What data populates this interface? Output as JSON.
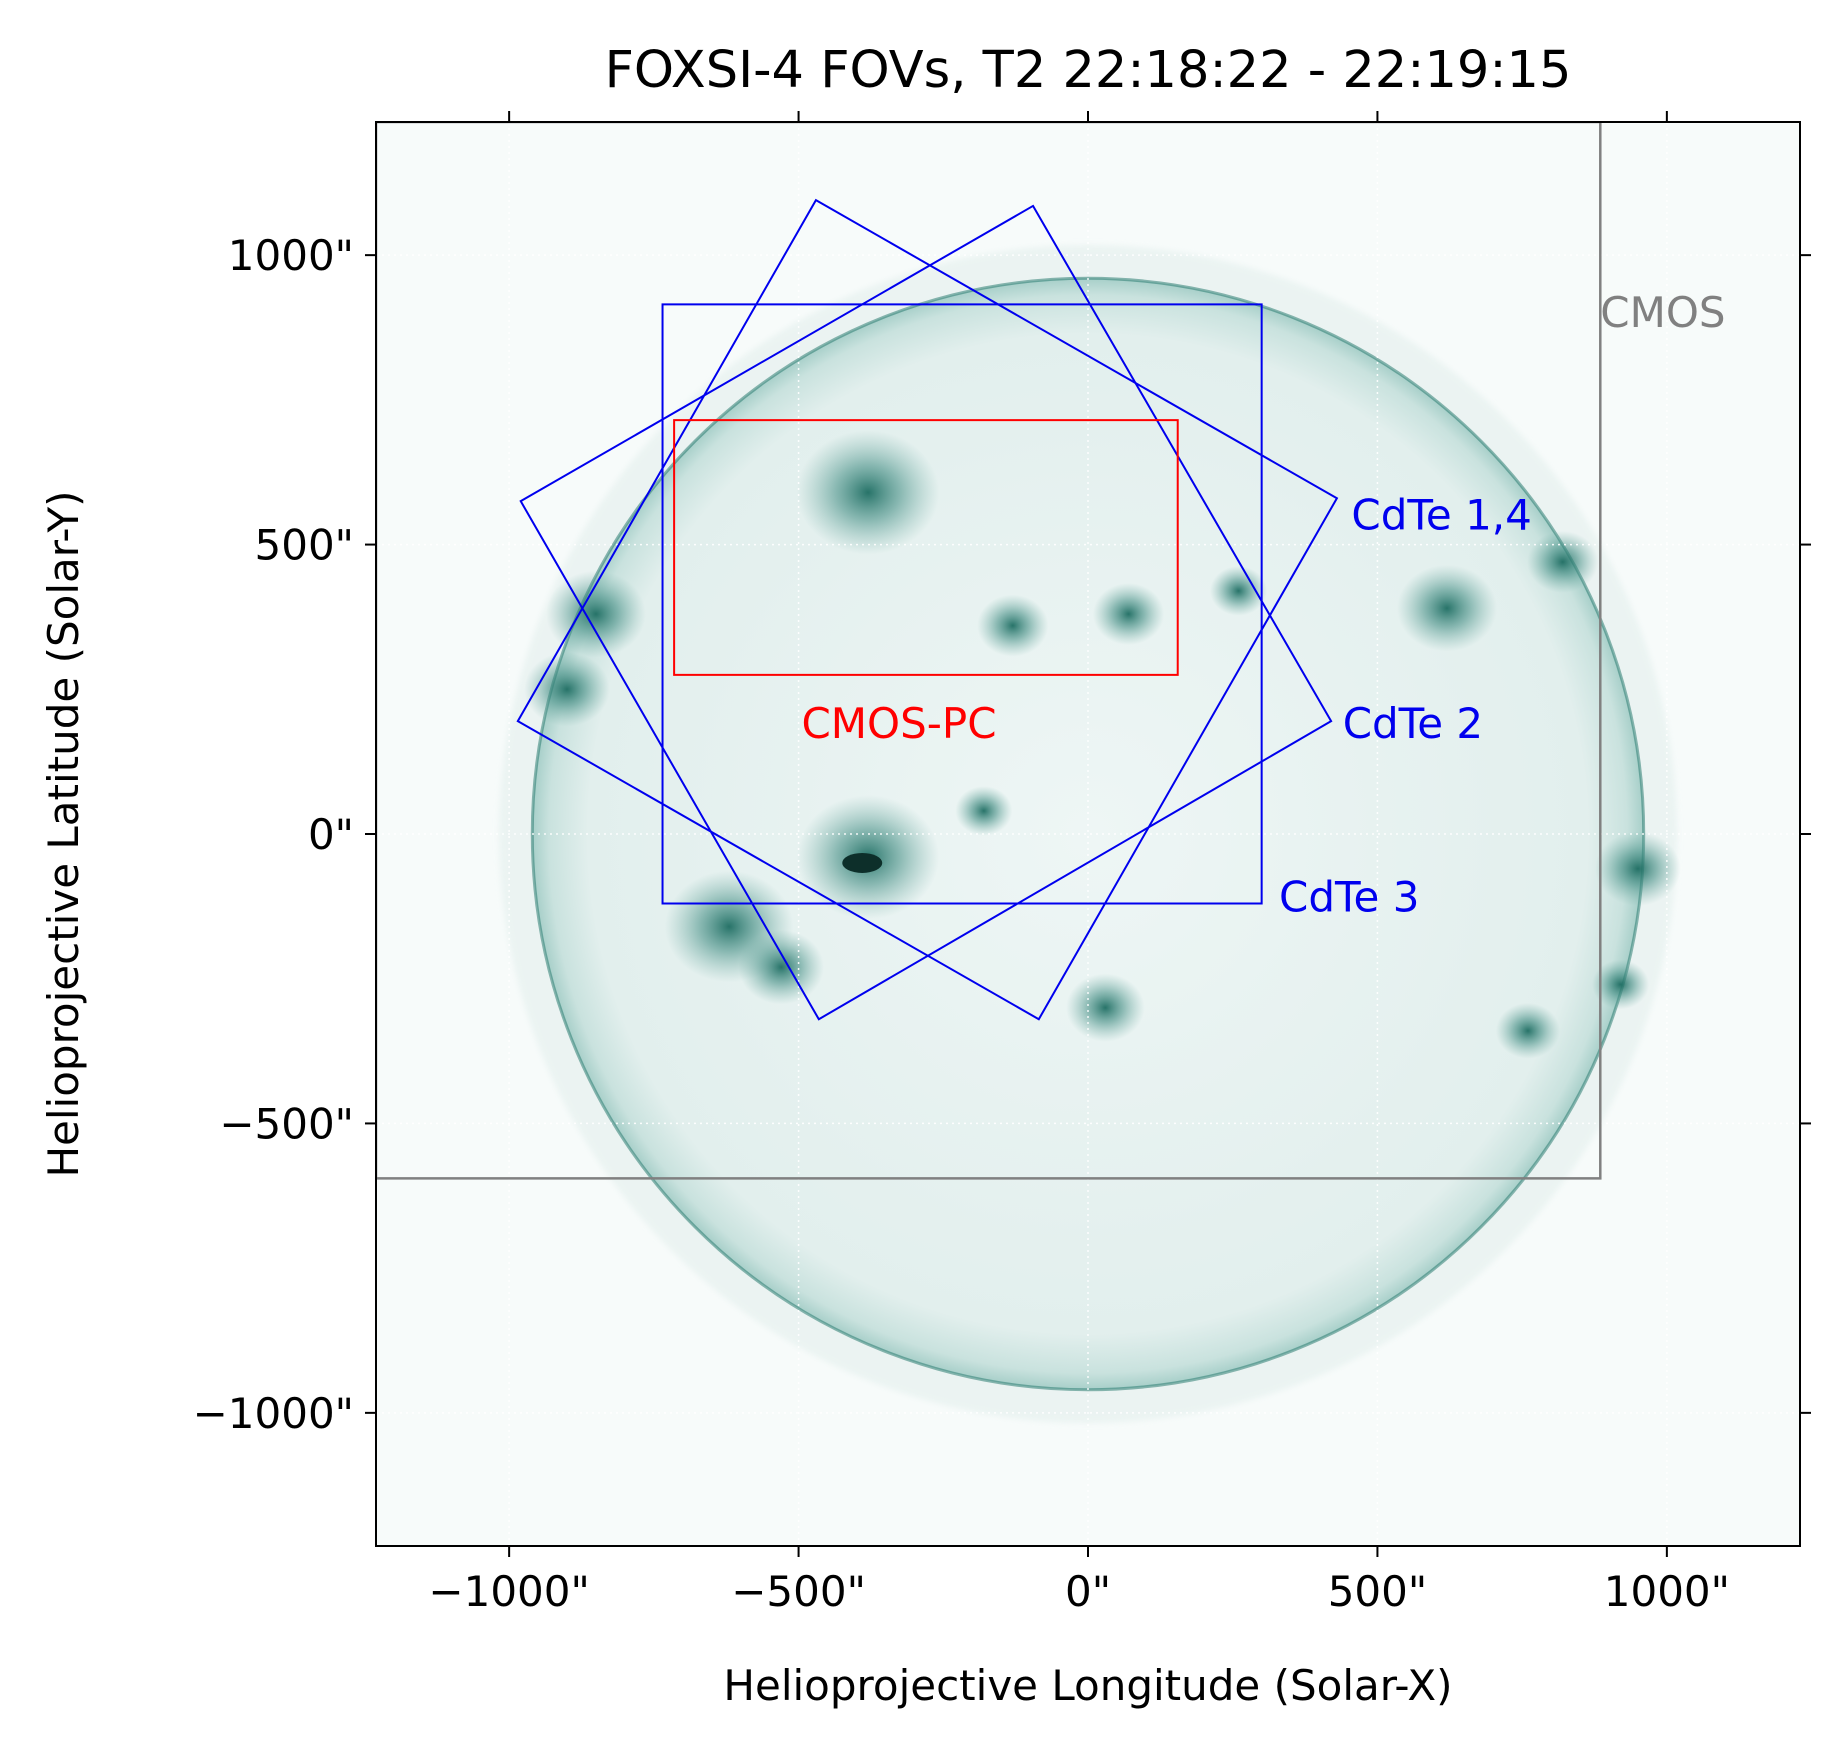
{
  "chart_data": {
    "type": "scatter",
    "title": "FOXSI-4 FOVs, T2 22:18:22 - 22:19:15",
    "xlabel": "Helioprojective Longitude (Solar-X)",
    "ylabel": "Helioprojective Latitude (Solar-Y)",
    "xlim": [
      -1230,
      1230
    ],
    "ylim": [
      -1230,
      1230
    ],
    "xticks": [
      -1000,
      -500,
      0,
      500,
      1000
    ],
    "yticks": [
      -1000,
      -500,
      0,
      500,
      1000
    ],
    "xtick_labels": [
      "−1000\"",
      "−500\"",
      "0\"",
      "500\"",
      "1000\""
    ],
    "ytick_labels": [
      "−1000\"",
      "−500\"",
      "0\"",
      "500\"",
      "1000\""
    ],
    "grid": true,
    "solar_radius_arcsec": 960,
    "colors": {
      "cdte": "#0000ee",
      "cmos_pc": "#ff0000",
      "cmos": "#808080",
      "sun": "#2e7d72"
    },
    "fovs": [
      {
        "name": "CdTe 1,4",
        "color": "#0000ee",
        "corners": [
          [
            -470,
            1095
          ],
          [
            430,
            580
          ],
          [
            -85,
            -320
          ],
          [
            -985,
            195
          ]
        ]
      },
      {
        "name": "CdTe 2",
        "color": "#0000ee",
        "corners": [
          [
            -95,
            1085
          ],
          [
            420,
            195
          ],
          [
            -465,
            -320
          ],
          [
            -980,
            575
          ]
        ]
      },
      {
        "name": "CdTe 3",
        "color": "#0000ee",
        "corners": [
          [
            -735,
            915
          ],
          [
            300,
            915
          ],
          [
            300,
            -120
          ],
          [
            -735,
            -120
          ]
        ]
      },
      {
        "name": "CMOS-PC",
        "color": "#ff0000",
        "corners": [
          [
            -715,
            715
          ],
          [
            155,
            715
          ],
          [
            155,
            275
          ],
          [
            -715,
            275
          ]
        ]
      },
      {
        "name": "CMOS",
        "color": "#808080",
        "corners": [
          [
            -1230,
            1230
          ],
          [
            885,
            1230
          ],
          [
            885,
            -595
          ],
          [
            -1230,
            -595
          ]
        ]
      }
    ],
    "annotations": [
      {
        "text": "CdTe 1,4",
        "x": 455,
        "y": 550,
        "color": "#0000ee"
      },
      {
        "text": "CdTe 2",
        "x": 440,
        "y": 190,
        "color": "#0000ee"
      },
      {
        "text": "CdTe 3",
        "x": 330,
        "y": -110,
        "color": "#0000ee"
      },
      {
        "text": "CMOS-PC",
        "x": -495,
        "y": 190,
        "color": "#ff0000"
      },
      {
        "text": "CMOS",
        "x": 885,
        "y": 900,
        "color": "#808080"
      }
    ],
    "active_regions": [
      {
        "x": -380,
        "y": 590,
        "size": 1.0
      },
      {
        "x": -380,
        "y": -40,
        "size": 1.0
      },
      {
        "x": -620,
        "y": -160,
        "size": 0.9
      },
      {
        "x": -850,
        "y": 380,
        "size": 0.7
      },
      {
        "x": -900,
        "y": 250,
        "size": 0.6
      },
      {
        "x": 620,
        "y": 390,
        "size": 0.7
      },
      {
        "x": 820,
        "y": 470,
        "size": 0.5
      },
      {
        "x": 950,
        "y": -60,
        "size": 0.6
      },
      {
        "x": 70,
        "y": 380,
        "size": 0.5
      },
      {
        "x": -130,
        "y": 360,
        "size": 0.5
      },
      {
        "x": 30,
        "y": -300,
        "size": 0.55
      },
      {
        "x": 760,
        "y": -340,
        "size": 0.45
      },
      {
        "x": -530,
        "y": -230,
        "size": 0.6
      },
      {
        "x": 920,
        "y": -260,
        "size": 0.4
      },
      {
        "x": -180,
        "y": 40,
        "size": 0.4
      },
      {
        "x": 260,
        "y": 420,
        "size": 0.4
      }
    ]
  }
}
